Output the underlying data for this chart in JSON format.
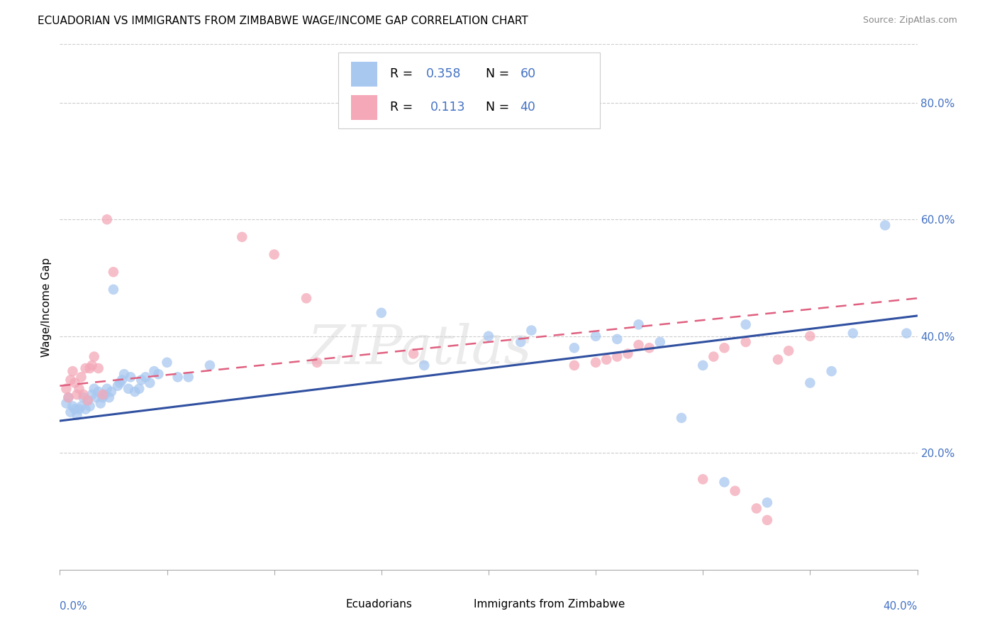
{
  "title": "ECUADORIAN VS IMMIGRANTS FROM ZIMBABWE WAGE/INCOME GAP CORRELATION CHART",
  "source": "Source: ZipAtlas.com",
  "ylabel": "Wage/Income Gap",
  "ytick_vals": [
    0.2,
    0.4,
    0.6,
    0.8
  ],
  "ytick_labels": [
    "20.0%",
    "40.0%",
    "60.0%",
    "80.0%"
  ],
  "xlim": [
    0.0,
    0.4
  ],
  "ylim": [
    0.0,
    0.9
  ],
  "legend_label_blue": "Ecuadorians",
  "legend_label_pink": "Immigrants from Zimbabwe",
  "R_blue": "0.358",
  "N_blue": "60",
  "R_pink": "0.113",
  "N_pink": "40",
  "color_blue": "#A8C8F0",
  "color_pink": "#F4A8B8",
  "line_blue": "#3050A0",
  "line_pink": "#E06080",
  "watermark": "ZIPatlas",
  "watermark_color": "#D8D8D8",
  "blue_x": [
    0.003,
    0.004,
    0.005,
    0.006,
    0.007,
    0.008,
    0.009,
    0.01,
    0.011,
    0.012,
    0.013,
    0.014,
    0.015,
    0.016,
    0.017,
    0.018,
    0.019,
    0.02,
    0.021,
    0.022,
    0.023,
    0.024,
    0.025,
    0.027,
    0.028,
    0.029,
    0.03,
    0.032,
    0.033,
    0.035,
    0.037,
    0.038,
    0.04,
    0.042,
    0.044,
    0.046,
    0.05,
    0.055,
    0.06,
    0.07,
    0.15,
    0.17,
    0.2,
    0.215,
    0.22,
    0.24,
    0.25,
    0.26,
    0.27,
    0.28,
    0.29,
    0.3,
    0.31,
    0.32,
    0.33,
    0.35,
    0.36,
    0.37,
    0.385,
    0.395
  ],
  "blue_y": [
    0.285,
    0.295,
    0.27,
    0.28,
    0.275,
    0.265,
    0.275,
    0.28,
    0.295,
    0.275,
    0.29,
    0.28,
    0.3,
    0.31,
    0.295,
    0.305,
    0.285,
    0.295,
    0.3,
    0.31,
    0.295,
    0.305,
    0.48,
    0.315,
    0.32,
    0.325,
    0.335,
    0.31,
    0.33,
    0.305,
    0.31,
    0.325,
    0.33,
    0.32,
    0.34,
    0.335,
    0.355,
    0.33,
    0.33,
    0.35,
    0.44,
    0.35,
    0.4,
    0.39,
    0.41,
    0.38,
    0.4,
    0.395,
    0.42,
    0.39,
    0.26,
    0.35,
    0.15,
    0.42,
    0.115,
    0.32,
    0.34,
    0.405,
    0.59,
    0.405
  ],
  "pink_x": [
    0.003,
    0.004,
    0.005,
    0.006,
    0.007,
    0.008,
    0.009,
    0.01,
    0.011,
    0.012,
    0.013,
    0.014,
    0.015,
    0.016,
    0.018,
    0.02,
    0.022,
    0.025,
    0.085,
    0.1,
    0.115,
    0.12,
    0.165,
    0.24,
    0.25,
    0.255,
    0.26,
    0.265,
    0.27,
    0.275,
    0.3,
    0.305,
    0.31,
    0.315,
    0.32,
    0.325,
    0.33,
    0.335,
    0.34,
    0.35
  ],
  "pink_y": [
    0.31,
    0.295,
    0.325,
    0.34,
    0.32,
    0.3,
    0.31,
    0.33,
    0.3,
    0.345,
    0.29,
    0.345,
    0.35,
    0.365,
    0.345,
    0.3,
    0.6,
    0.51,
    0.57,
    0.54,
    0.465,
    0.355,
    0.37,
    0.35,
    0.355,
    0.36,
    0.365,
    0.37,
    0.385,
    0.38,
    0.155,
    0.365,
    0.38,
    0.135,
    0.39,
    0.105,
    0.085,
    0.36,
    0.375,
    0.4
  ],
  "blue_line_x0": 0.0,
  "blue_line_x1": 0.4,
  "blue_line_y0": 0.255,
  "blue_line_y1": 0.435,
  "pink_line_x0": 0.0,
  "pink_line_x1": 0.4,
  "pink_line_y0": 0.315,
  "pink_line_y1": 0.465
}
